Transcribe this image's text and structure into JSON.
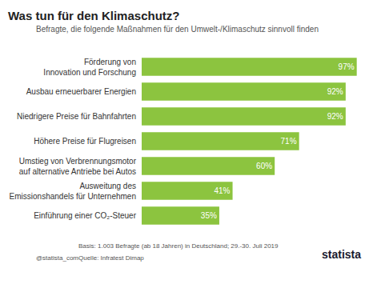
{
  "chart_data": {
    "type": "bar",
    "orientation": "horizontal",
    "title": "Was tun für den Klimaschutz?",
    "subtitle": "Befragte, die folgende Maßnahmen für den Umwelt-/Klimaschutz sinnvoll finden",
    "categories": [
      "Förderung von\nInnovation und Forschung",
      "Ausbau erneuerbarer Energien",
      "Niedrigere Preise für Bahnfahrten",
      "Höhere Preise für Flugreisen",
      "Umstieg von Verbrennungsmotor\nauf alternative Antriebe bei Autos",
      "Ausweitung des\nEmissionshandels für Unternehmen",
      "Einführung einer CO₂-Steuer"
    ],
    "values": [
      97,
      92,
      92,
      71,
      60,
      41,
      35
    ],
    "value_labels": [
      "97%",
      "92%",
      "92%",
      "71%",
      "60%",
      "41%",
      "35%"
    ],
    "color": "#8cc43f",
    "xlim": [
      0,
      100
    ],
    "tick_labels": "y",
    "data_labels": true,
    "grid": false,
    "annotations": [
      "Basis: 1.003 Befragte (ab 18 Jahren) in Deutschland; 29.-30. Juli 2019",
      "Quelle: Infratest Dimap",
      "@statista_com",
      "statista"
    ]
  }
}
